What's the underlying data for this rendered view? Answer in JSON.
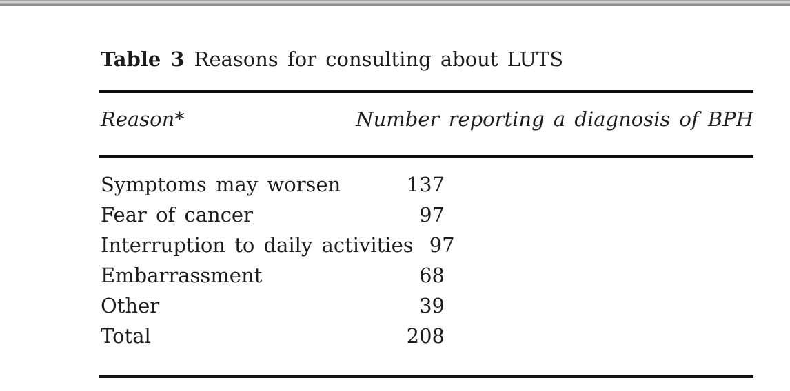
{
  "page": {
    "background": "#ffffff",
    "top_bar_colors": {
      "light": "#d3d3d3",
      "dark": "#8d8d8d"
    },
    "text_color": "#1d1d1d",
    "rule_color": "#121212"
  },
  "table": {
    "caption": {
      "label": "Table 3",
      "title": "Reasons for consulting about LUTS"
    },
    "columns": [
      {
        "header": "Reason*"
      },
      {
        "header": "Number reporting a diagnosis of BPH"
      }
    ],
    "rows": [
      {
        "reason": "Symptoms may worsen",
        "count": "137"
      },
      {
        "reason": "Fear of cancer",
        "count": "97"
      },
      {
        "reason": "Interruption to daily activities",
        "count": "97"
      },
      {
        "reason": "Embarrassment",
        "count": "68"
      },
      {
        "reason": "Other",
        "count": "39"
      },
      {
        "reason": "Total",
        "count": "208"
      }
    ]
  }
}
